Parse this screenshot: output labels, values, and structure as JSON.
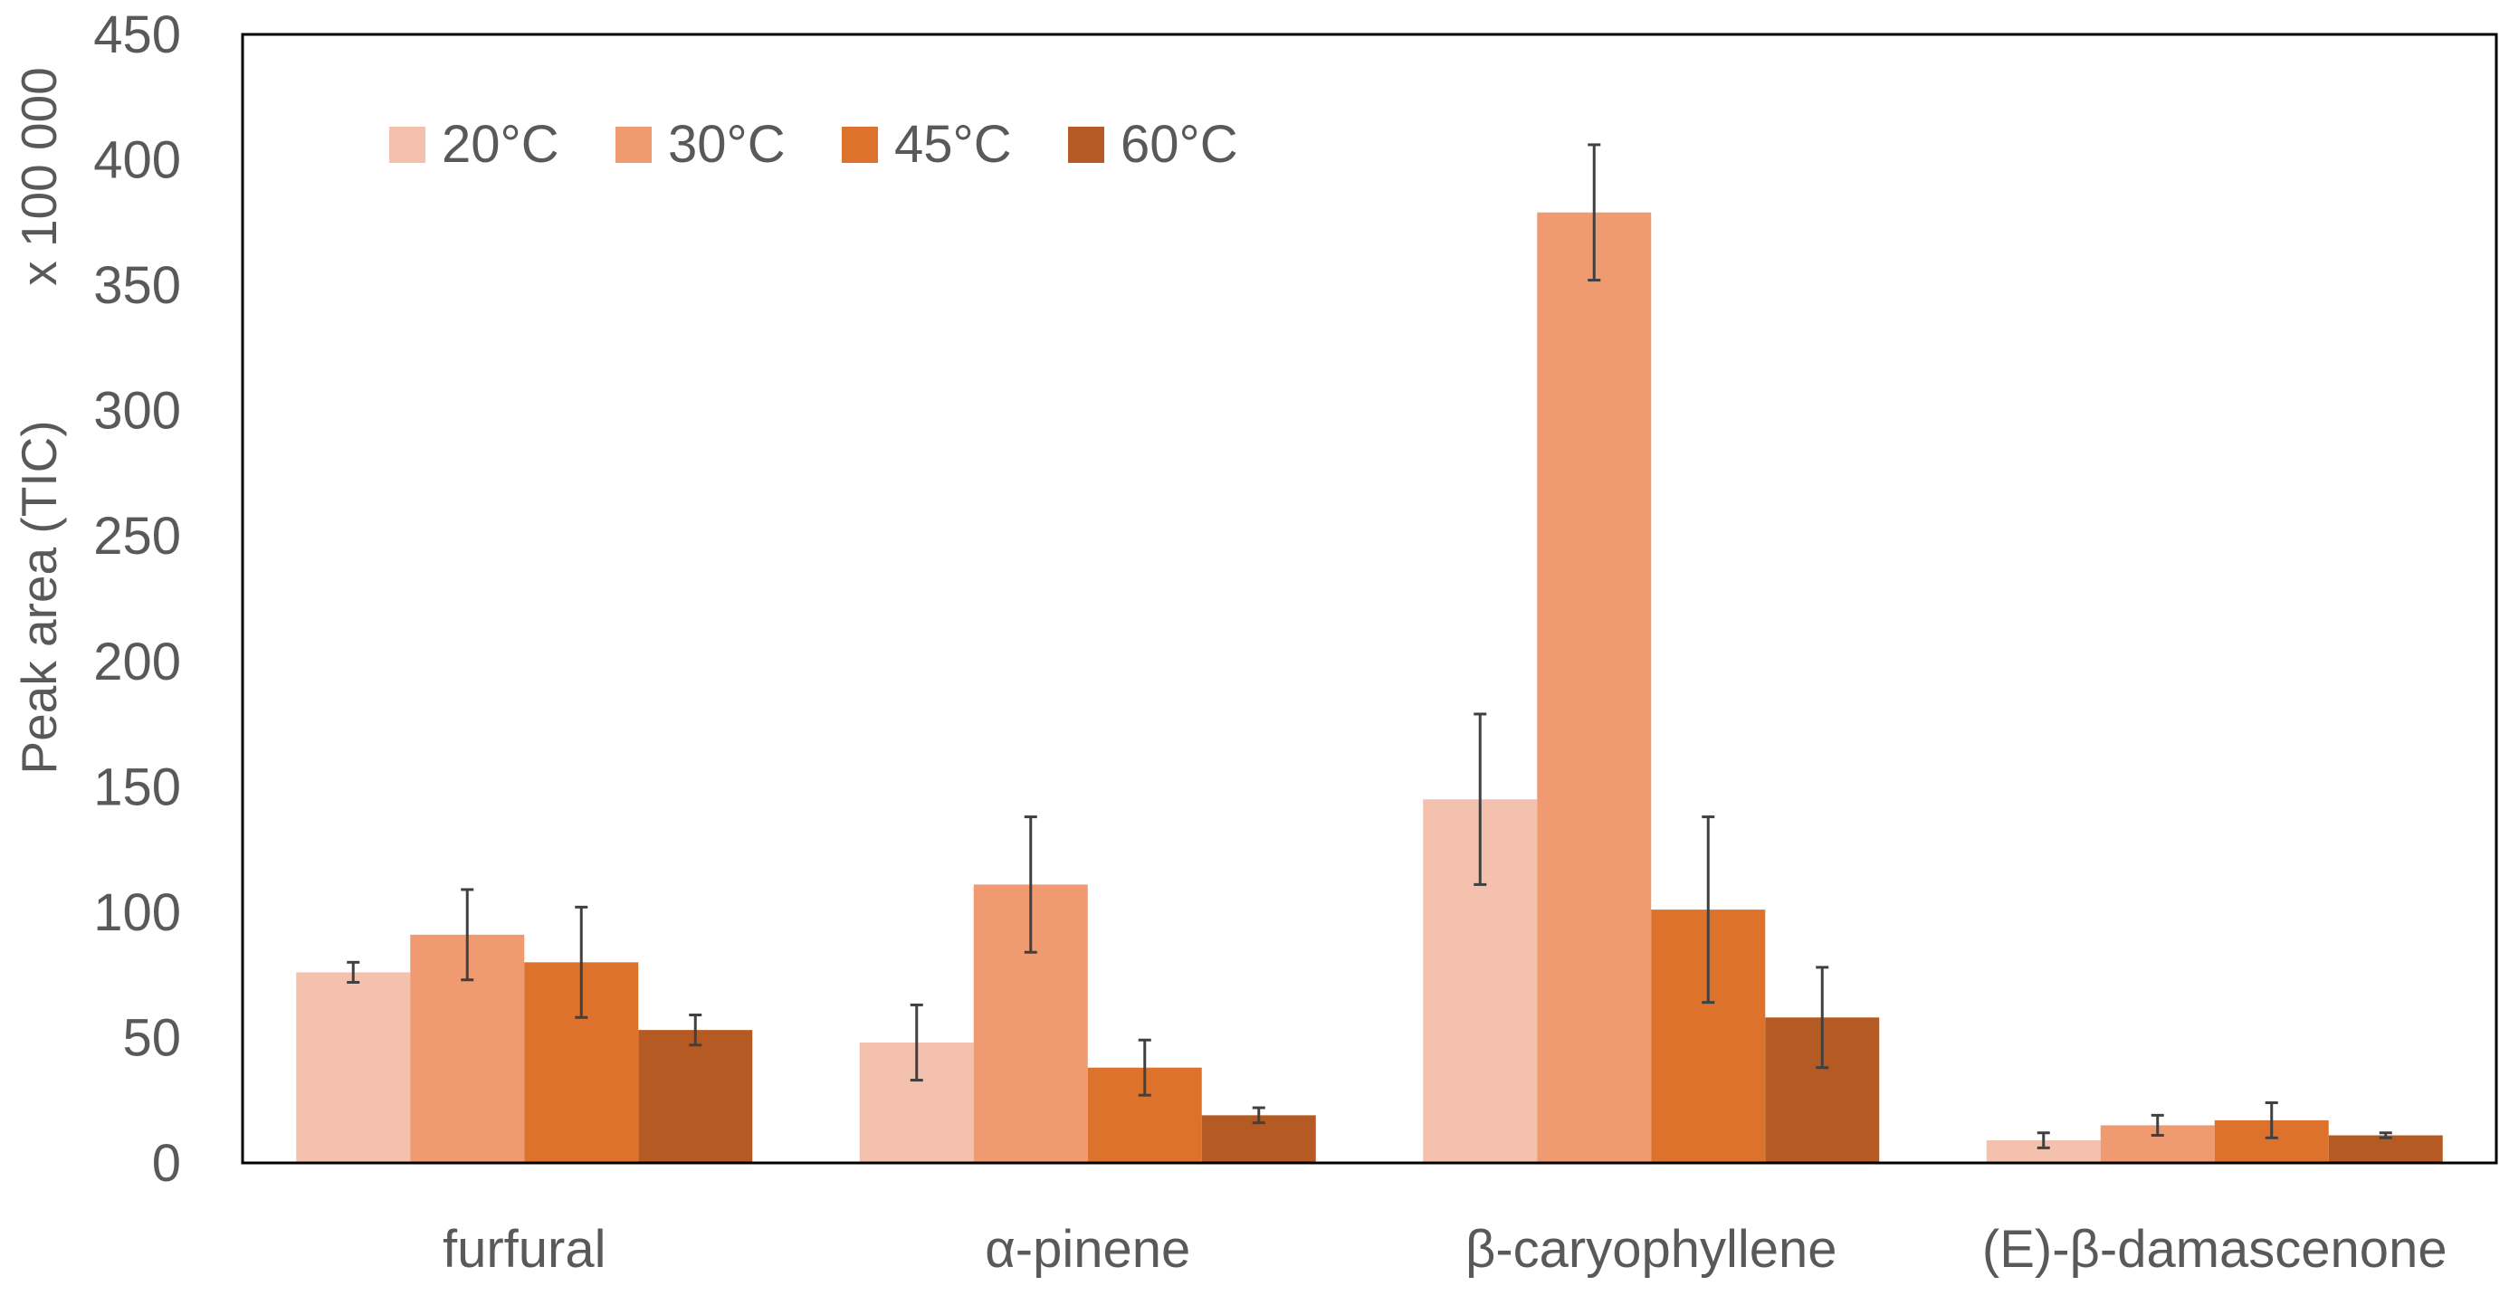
{
  "chart_data": {
    "type": "bar",
    "title": "",
    "xlabel": "",
    "ylabel": "Peak area (TIC)",
    "ylabel_multiplier": "x 100 000",
    "ylim": [
      0,
      450
    ],
    "yticks": [
      0,
      50,
      100,
      150,
      200,
      250,
      300,
      350,
      400,
      450
    ],
    "grid": false,
    "legend_position": "top-left",
    "categories": [
      "furfural",
      "α-pinene",
      "β-caryophyllene",
      "(E)-β-damascenone"
    ],
    "series": [
      {
        "name": "20°C",
        "color": "#f4c1ae",
        "values": [
          76,
          48,
          145,
          9
        ],
        "errors": [
          4,
          15,
          34,
          3
        ]
      },
      {
        "name": "30°C",
        "color": "#ef9a70",
        "values": [
          91,
          111,
          379,
          15
        ],
        "errors": [
          18,
          27,
          27,
          4
        ]
      },
      {
        "name": "45°C",
        "color": "#dd722c",
        "values": [
          80,
          38,
          101,
          17
        ],
        "errors": [
          22,
          11,
          37,
          7
        ]
      },
      {
        "name": "60°C",
        "color": "#b55a22",
        "values": [
          53,
          19,
          58,
          11
        ],
        "errors": [
          6,
          3,
          20,
          1
        ]
      }
    ]
  }
}
